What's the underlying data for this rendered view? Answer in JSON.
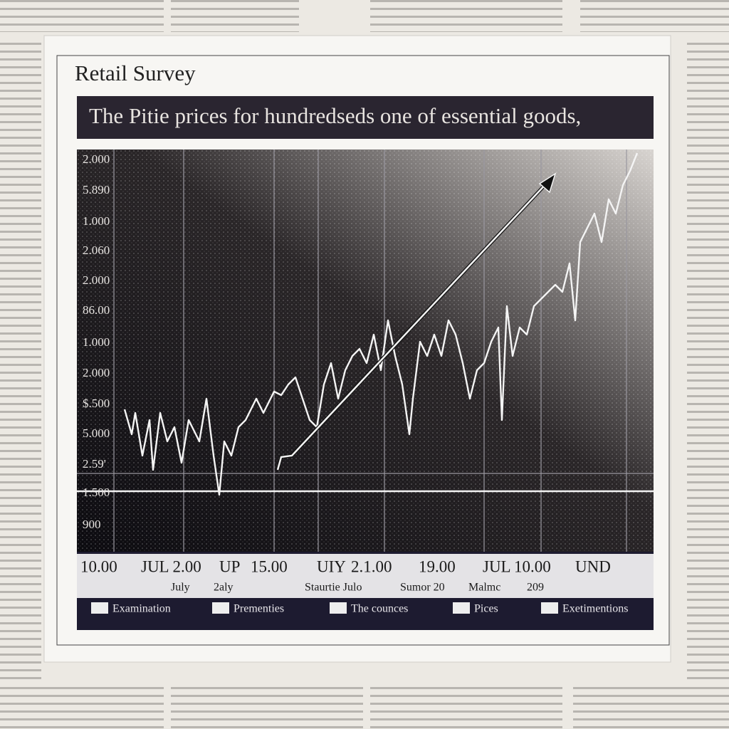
{
  "header": {
    "title": "Retail  Survey"
  },
  "banner": "The Pitie prices for hundredseds one of essential goods,",
  "y_axis_labels": [
    "2.000",
    "5.890",
    "1.000",
    "2.060",
    "2.000",
    "86.00",
    "1.000",
    "2.000",
    "$.500",
    "5.000",
    "2.59'",
    "1.500",
    "900"
  ],
  "x_labels_top": [
    "10.00",
    "JUL 2.00",
    "UP",
    "15.00",
    "UIY",
    "2.1.00",
    "19.00",
    "JUL",
    "10.00",
    "UND"
  ],
  "x_labels_bottom": [
    "July",
    "2aly",
    "Staurtie Julo",
    "Sumor 20",
    "Malmc",
    "209"
  ],
  "legend": [
    "Examination",
    "Prementies",
    "The counces",
    "Pices",
    "Exetimentions"
  ]
}
